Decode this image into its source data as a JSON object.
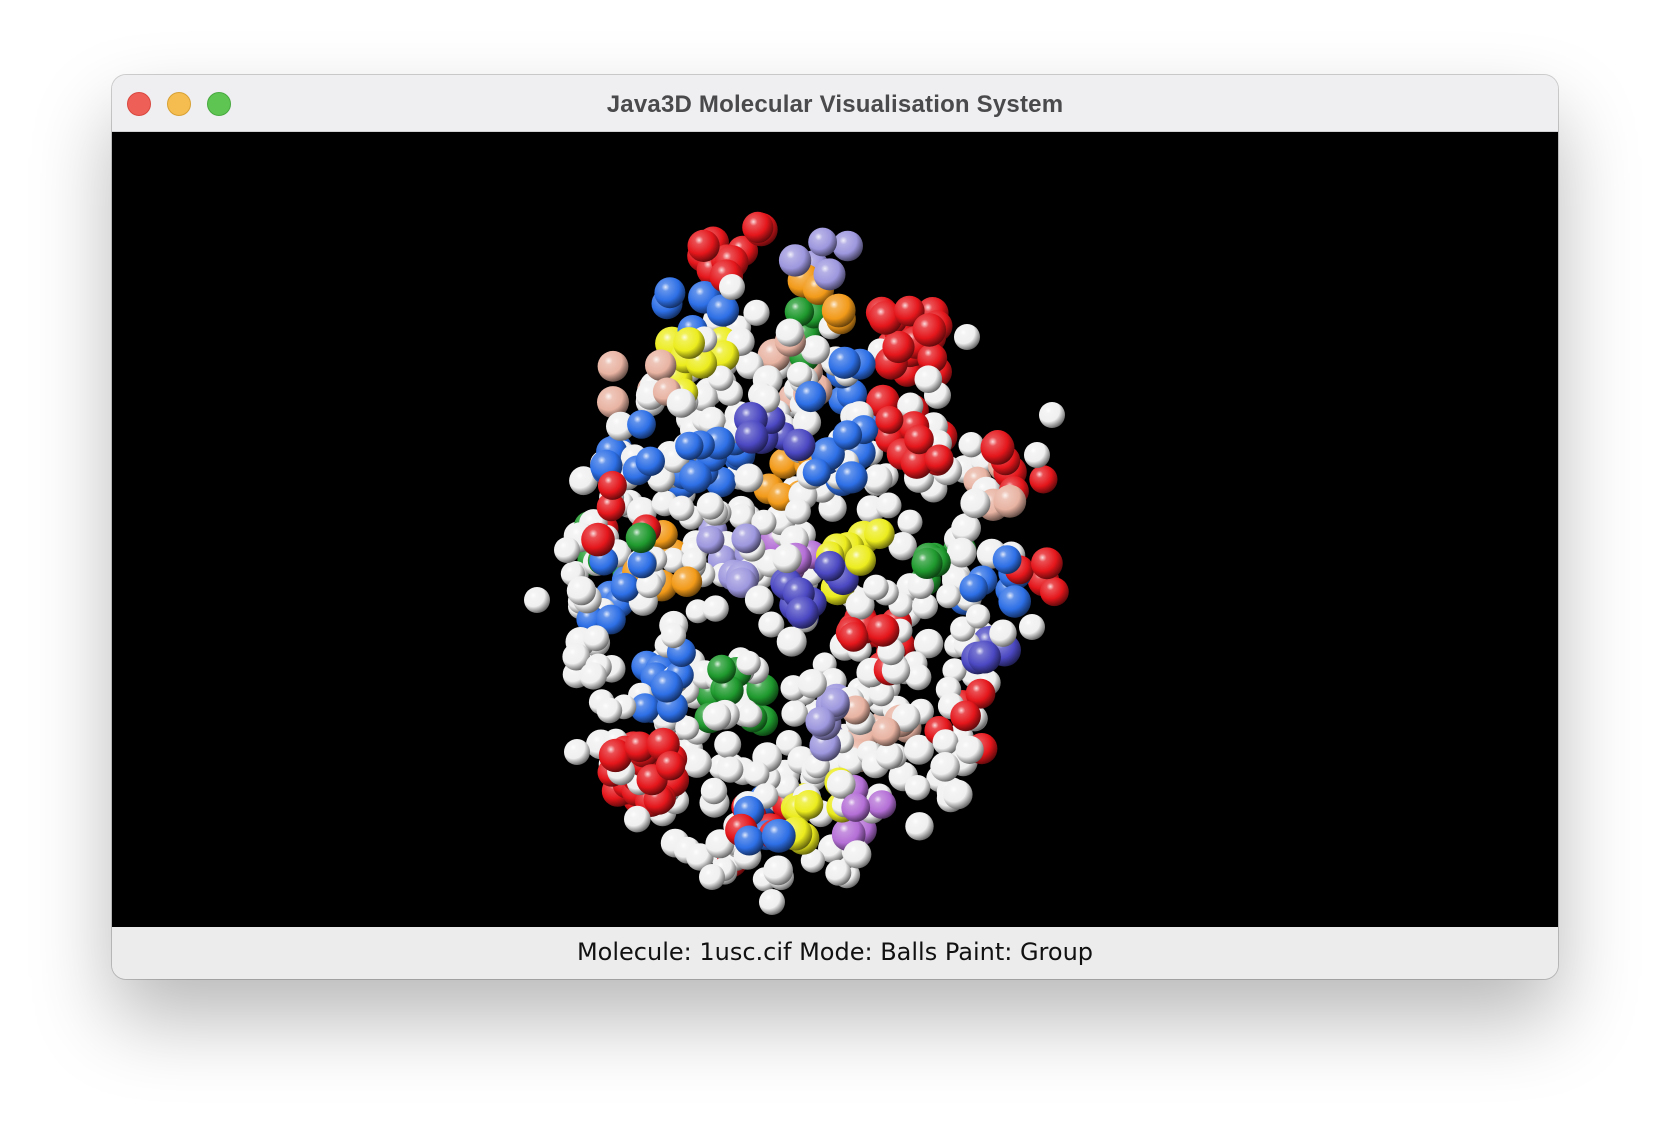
{
  "window": {
    "title": "Java3D Molecular Visualisation System"
  },
  "status": {
    "text": "Molecule: 1usc.cif Mode: Balls Paint: Group"
  },
  "viewport": {
    "background": "#000000",
    "atom_palette": {
      "white": "#f0f0f0",
      "red": "#e4161b",
      "blue": "#2d6fe6",
      "green": "#1f9a2e",
      "yellow": "#ecec1e",
      "slate": "#4b48c2",
      "lavender": "#9d97de",
      "peach": "#e8b3a2",
      "orange": "#f29a19",
      "violet": "#b46fd6"
    }
  },
  "colors": {
    "close": "#ee5f57",
    "minimize": "#f5bd4f",
    "zoom": "#5ec553"
  }
}
